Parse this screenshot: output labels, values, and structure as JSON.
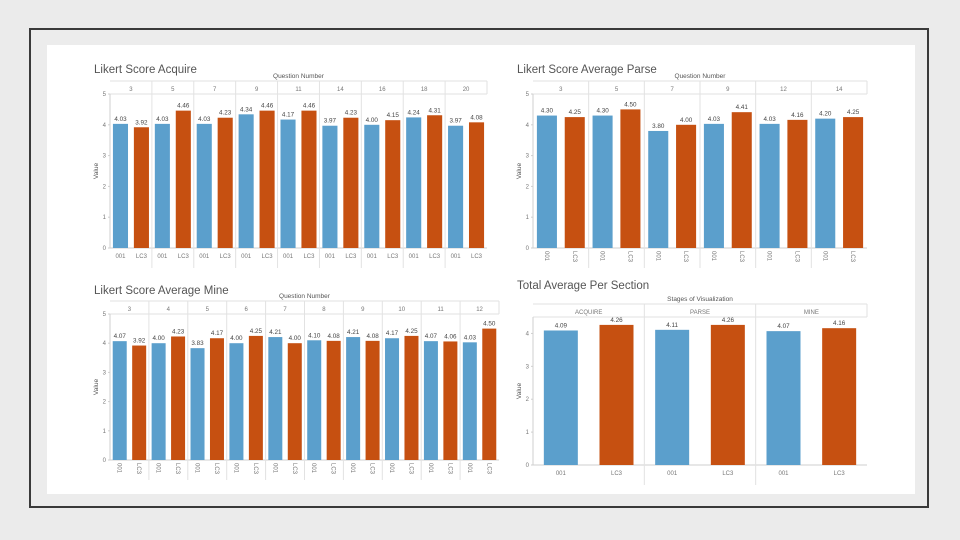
{
  "colors": {
    "s001": "#5b9fcc",
    "lc3": "#c65011",
    "grid": "#e2e2e2",
    "text": "#555555"
  },
  "chart_data": [
    {
      "type": "bar",
      "title": "Likert Score Acquire",
      "column_header": "Question Number",
      "ylabel": "Value",
      "ylim": [
        0,
        5
      ],
      "yticks": [
        0,
        1,
        2,
        3,
        4,
        5
      ],
      "groups": [
        "3",
        "5",
        "7",
        "9",
        "11",
        "14",
        "16",
        "18",
        "20"
      ],
      "series": [
        {
          "name": "001",
          "values": [
            4.03,
            4.03,
            4.03,
            4.34,
            4.17,
            3.97,
            4.0,
            4.24,
            3.97
          ]
        },
        {
          "name": "LC3",
          "values": [
            3.92,
            4.46,
            4.23,
            4.46,
            4.46,
            4.23,
            4.15,
            4.31,
            4.08
          ]
        }
      ],
      "value_labels": [
        [
          "4.03",
          "3.92"
        ],
        [
          "4.03",
          "4.46"
        ],
        [
          "4.03",
          "4.23"
        ],
        [
          "4.34",
          "4.46"
        ],
        [
          "4.17",
          "4.46"
        ],
        [
          "3.97",
          "4.23"
        ],
        [
          "4.00",
          "4.15"
        ],
        [
          "4.24",
          "4.31"
        ],
        [
          "3.97",
          "4.08"
        ]
      ]
    },
    {
      "type": "bar",
      "title": "Likert Score Average Parse",
      "column_header": "Question Number",
      "ylabel": "Value",
      "ylim": [
        0,
        5
      ],
      "yticks": [
        0,
        1,
        2,
        3,
        4,
        5
      ],
      "groups": [
        "3",
        "5",
        "7",
        "9",
        "12",
        "14"
      ],
      "series": [
        {
          "name": "001",
          "values": [
            4.3,
            4.3,
            3.8,
            4.03,
            4.03,
            4.2
          ]
        },
        {
          "name": "LC3",
          "values": [
            4.25,
            4.5,
            4.0,
            4.41,
            4.16,
            4.25
          ]
        }
      ],
      "value_labels": [
        [
          "4.30",
          "4.25"
        ],
        [
          "4.30",
          "4.50"
        ],
        [
          "3.80",
          "4.00"
        ],
        [
          "4.03",
          "4.41"
        ],
        [
          "4.03",
          "4.16"
        ],
        [
          "4.20",
          "4.25"
        ]
      ]
    },
    {
      "type": "bar",
      "title": "Likert Score Average Mine",
      "column_header": "Question Number",
      "ylabel": "Value",
      "ylim": [
        0,
        5
      ],
      "yticks": [
        0,
        1,
        2,
        3,
        4,
        5
      ],
      "groups": [
        "3",
        "4",
        "5",
        "6",
        "7",
        "8",
        "9",
        "10",
        "11",
        "12"
      ],
      "series": [
        {
          "name": "001",
          "values": [
            4.07,
            4.0,
            3.83,
            4.0,
            4.21,
            4.1,
            4.21,
            4.17,
            4.07,
            4.03
          ]
        },
        {
          "name": "LC3",
          "values": [
            3.92,
            4.23,
            4.17,
            4.25,
            4.0,
            4.08,
            4.08,
            4.25,
            4.06,
            4.5
          ]
        }
      ],
      "value_labels": [
        [
          "4.07",
          "3.92"
        ],
        [
          "4.00",
          "4.23"
        ],
        [
          "3.83",
          "4.17"
        ],
        [
          "4.00",
          "4.25"
        ],
        [
          "4.21",
          "4.00"
        ],
        [
          "4.10",
          "4.08"
        ],
        [
          "4.21",
          "4.08"
        ],
        [
          "4.17",
          "4.25"
        ],
        [
          "4.07",
          "4.06"
        ],
        [
          "4.03",
          "4.50"
        ]
      ]
    },
    {
      "type": "bar",
      "title": "Total Average Per Section",
      "column_header": "Stages of Visualization",
      "ylabel": "Value",
      "ylim": [
        0,
        4.5
      ],
      "yticks": [
        0,
        1,
        2,
        3,
        4
      ],
      "groups": [
        "ACQUIRE",
        "PARSE",
        "MINE"
      ],
      "series": [
        {
          "name": "001",
          "values": [
            4.09,
            4.11,
            4.07
          ]
        },
        {
          "name": "LC3",
          "values": [
            4.26,
            4.26,
            4.16
          ]
        }
      ],
      "value_labels": [
        [
          "4.09",
          "4.26"
        ],
        [
          "4.11",
          "4.26"
        ],
        [
          "4.07",
          "4.16"
        ]
      ]
    }
  ]
}
